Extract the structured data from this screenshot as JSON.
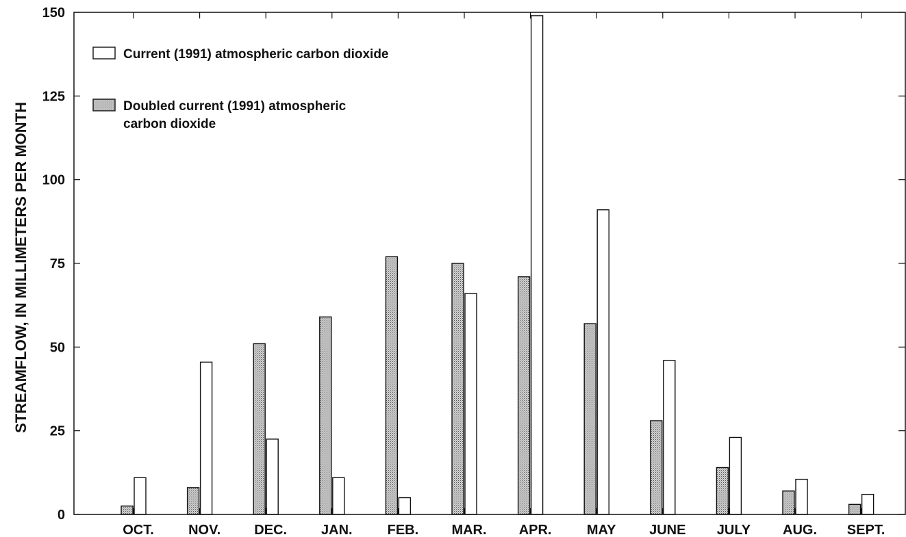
{
  "chart_data": {
    "type": "bar",
    "ylabel": "STREAMFLOW, IN MILLIMETERS PER MONTH",
    "xlabel": "",
    "ylim": [
      0,
      150
    ],
    "yticks": [
      "0",
      "25",
      "50",
      "75",
      "100",
      "125",
      "150"
    ],
    "categories": [
      "OCT.",
      "NOV.",
      "DEC.",
      "JAN.",
      "FEB.",
      "MAR.",
      "APR.",
      "MAY",
      "JUNE",
      "JULY",
      "AUG.",
      "SEPT."
    ],
    "series": [
      {
        "name": "Doubled current (1991) atmospheric carbon dioxide",
        "legend_lines": [
          "Doubled current (1991) atmospheric",
          "carbon dioxide"
        ],
        "pattern": "stippled",
        "values": [
          2.5,
          8,
          51,
          59,
          77,
          75,
          71,
          57,
          28,
          14,
          7,
          3
        ]
      },
      {
        "name": "Current (1991) atmospheric carbon dioxide",
        "legend_lines": [
          "Current (1991) atmospheric carbon dioxide"
        ],
        "pattern": "white",
        "values": [
          11,
          45.5,
          22.5,
          11,
          5,
          66,
          149,
          91,
          46,
          23,
          10.5,
          6
        ]
      }
    ],
    "grid": false,
    "legend_position": "top-left"
  }
}
